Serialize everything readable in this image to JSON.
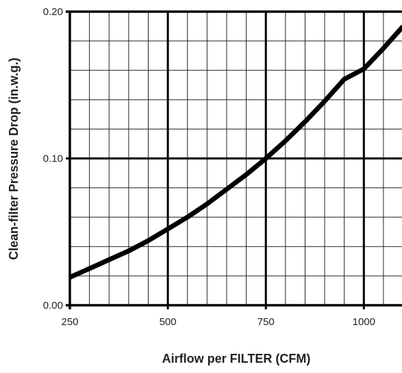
{
  "chart_data": {
    "type": "line",
    "title": "",
    "xlabel": "Airflow per FILTER (CFM)",
    "ylabel": "Clean-filter Pressure Drop (in.w.g.)",
    "xlim": [
      250,
      1100
    ],
    "ylim": [
      0.0,
      0.2
    ],
    "x_ticks": [
      250,
      500,
      750,
      1000
    ],
    "x_tick_labels": [
      "250",
      "500",
      "750",
      "1000"
    ],
    "y_ticks": [
      0.0,
      0.1,
      0.2
    ],
    "y_tick_labels": [
      "0.00",
      "0.10",
      "0.20"
    ],
    "grid": true,
    "x_minor_step": 50,
    "y_minor_step": 0.02,
    "legend": "none",
    "series": [
      {
        "color": "#000000",
        "x": [
          250,
          300,
          350,
          400,
          450,
          500,
          550,
          600,
          650,
          700,
          750,
          800,
          850,
          900,
          950,
          1000,
          1050,
          1100
        ],
        "y": [
          0.019,
          0.025,
          0.031,
          0.037,
          0.044,
          0.052,
          0.06,
          0.069,
          0.079,
          0.089,
          0.1,
          0.112,
          0.125,
          0.139,
          0.154,
          0.161,
          0.175,
          0.19
        ]
      }
    ]
  }
}
